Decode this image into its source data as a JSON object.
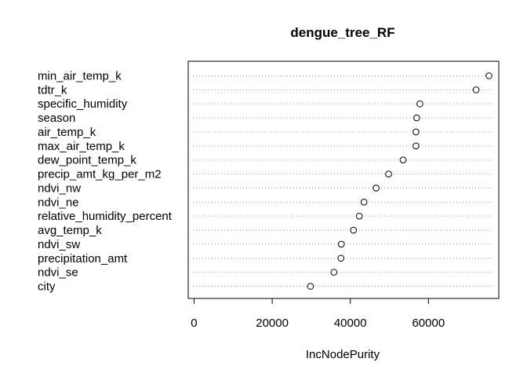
{
  "chart_data": {
    "type": "scatter",
    "subtype": "dotchart",
    "title": "dengue_tree_RF",
    "xlabel": "IncNodePurity",
    "ylabel": "",
    "xlim": [
      -1500,
      78000
    ],
    "xticks": [
      0,
      20000,
      40000,
      60000
    ],
    "xtick_labels": [
      "0",
      "20000",
      "40000",
      "60000"
    ],
    "grid": "dotted horizontal guide lines",
    "categories": [
      "min_air_temp_k",
      "tdtr_k",
      "specific_humidity",
      "season",
      "air_temp_k",
      "max_air_temp_k",
      "dew_point_temp_k",
      "precip_amt_kg_per_m2",
      "ndvi_nw",
      "ndvi_ne",
      "relative_humidity_percent",
      "avg_temp_k",
      "ndvi_sw",
      "precipitation_amt",
      "ndvi_se",
      "city"
    ],
    "values": [
      75500,
      72200,
      57800,
      57000,
      56800,
      56800,
      53500,
      49800,
      46600,
      43500,
      42300,
      40800,
      37700,
      37600,
      35800,
      29800
    ]
  }
}
